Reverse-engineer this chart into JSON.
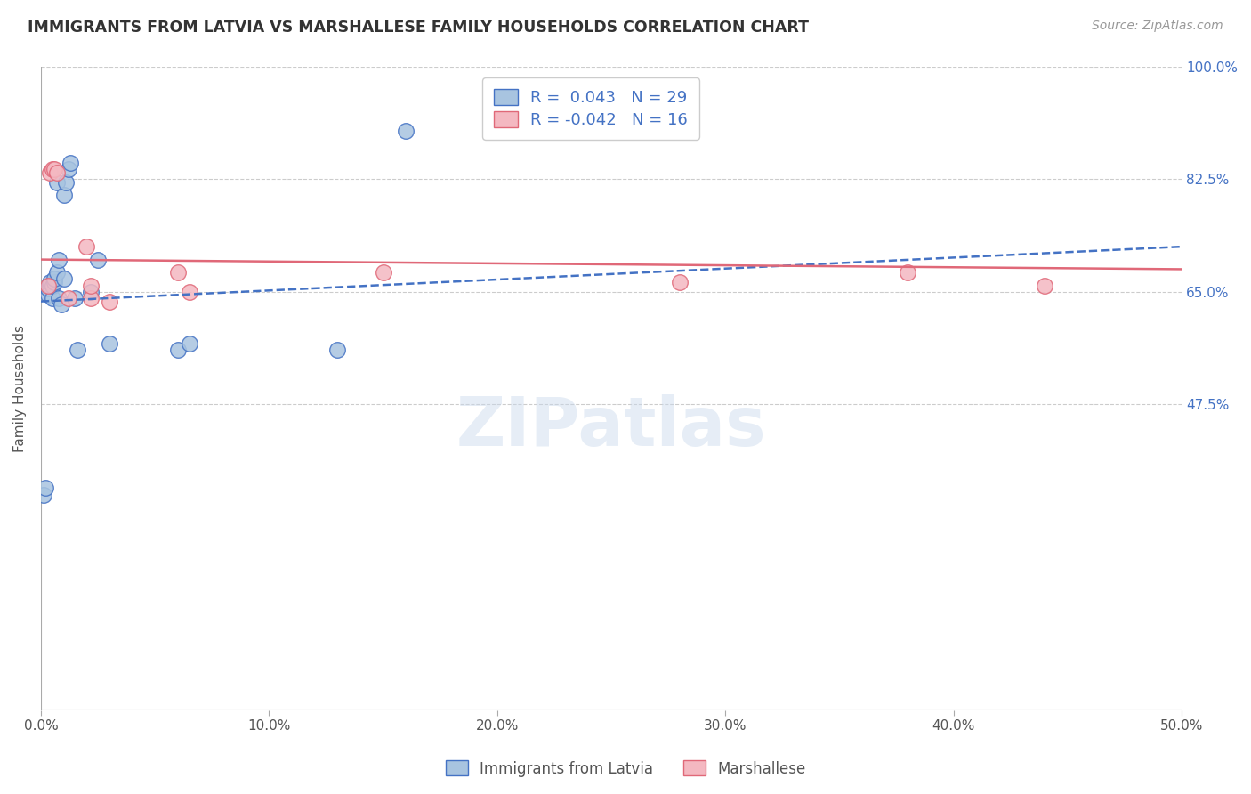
{
  "title": "IMMIGRANTS FROM LATVIA VS MARSHALLESE FAMILY HOUSEHOLDS CORRELATION CHART",
  "source": "Source: ZipAtlas.com",
  "ylabel": "Family Households",
  "xlim": [
    0.0,
    0.5
  ],
  "ylim": [
    0.0,
    1.0
  ],
  "yticks": [
    0.475,
    0.65,
    0.825,
    1.0
  ],
  "ytick_labels": [
    "47.5%",
    "65.0%",
    "82.5%",
    "100.0%"
  ],
  "xticks": [
    0.0,
    0.1,
    0.2,
    0.3,
    0.4,
    0.5
  ],
  "xtick_labels": [
    "0.0%",
    "10.0%",
    "20.0%",
    "30.0%",
    "40.0%",
    "50.0%"
  ],
  "blue_R": 0.043,
  "blue_N": 29,
  "pink_R": -0.042,
  "pink_N": 16,
  "blue_color": "#a8c4e0",
  "pink_color": "#f4b8c1",
  "blue_line_color": "#4472c4",
  "pink_line_color": "#e06878",
  "watermark": "ZIPatlas",
  "blue_scatter_x": [
    0.001,
    0.002,
    0.003,
    0.003,
    0.004,
    0.004,
    0.005,
    0.005,
    0.006,
    0.006,
    0.007,
    0.007,
    0.008,
    0.008,
    0.009,
    0.01,
    0.01,
    0.011,
    0.012,
    0.013,
    0.015,
    0.016,
    0.022,
    0.025,
    0.03,
    0.06,
    0.065,
    0.13,
    0.16
  ],
  "blue_scatter_y": [
    0.335,
    0.345,
    0.645,
    0.655,
    0.66,
    0.665,
    0.64,
    0.66,
    0.665,
    0.67,
    0.68,
    0.82,
    0.64,
    0.7,
    0.63,
    0.67,
    0.8,
    0.82,
    0.84,
    0.85,
    0.64,
    0.56,
    0.65,
    0.7,
    0.57,
    0.56,
    0.57,
    0.56,
    0.9
  ],
  "pink_scatter_x": [
    0.003,
    0.004,
    0.005,
    0.006,
    0.007,
    0.012,
    0.02,
    0.022,
    0.022,
    0.03,
    0.06,
    0.065,
    0.15,
    0.28,
    0.38,
    0.44
  ],
  "pink_scatter_y": [
    0.66,
    0.835,
    0.84,
    0.84,
    0.835,
    0.64,
    0.72,
    0.64,
    0.66,
    0.635,
    0.68,
    0.65,
    0.68,
    0.665,
    0.68,
    0.66
  ]
}
